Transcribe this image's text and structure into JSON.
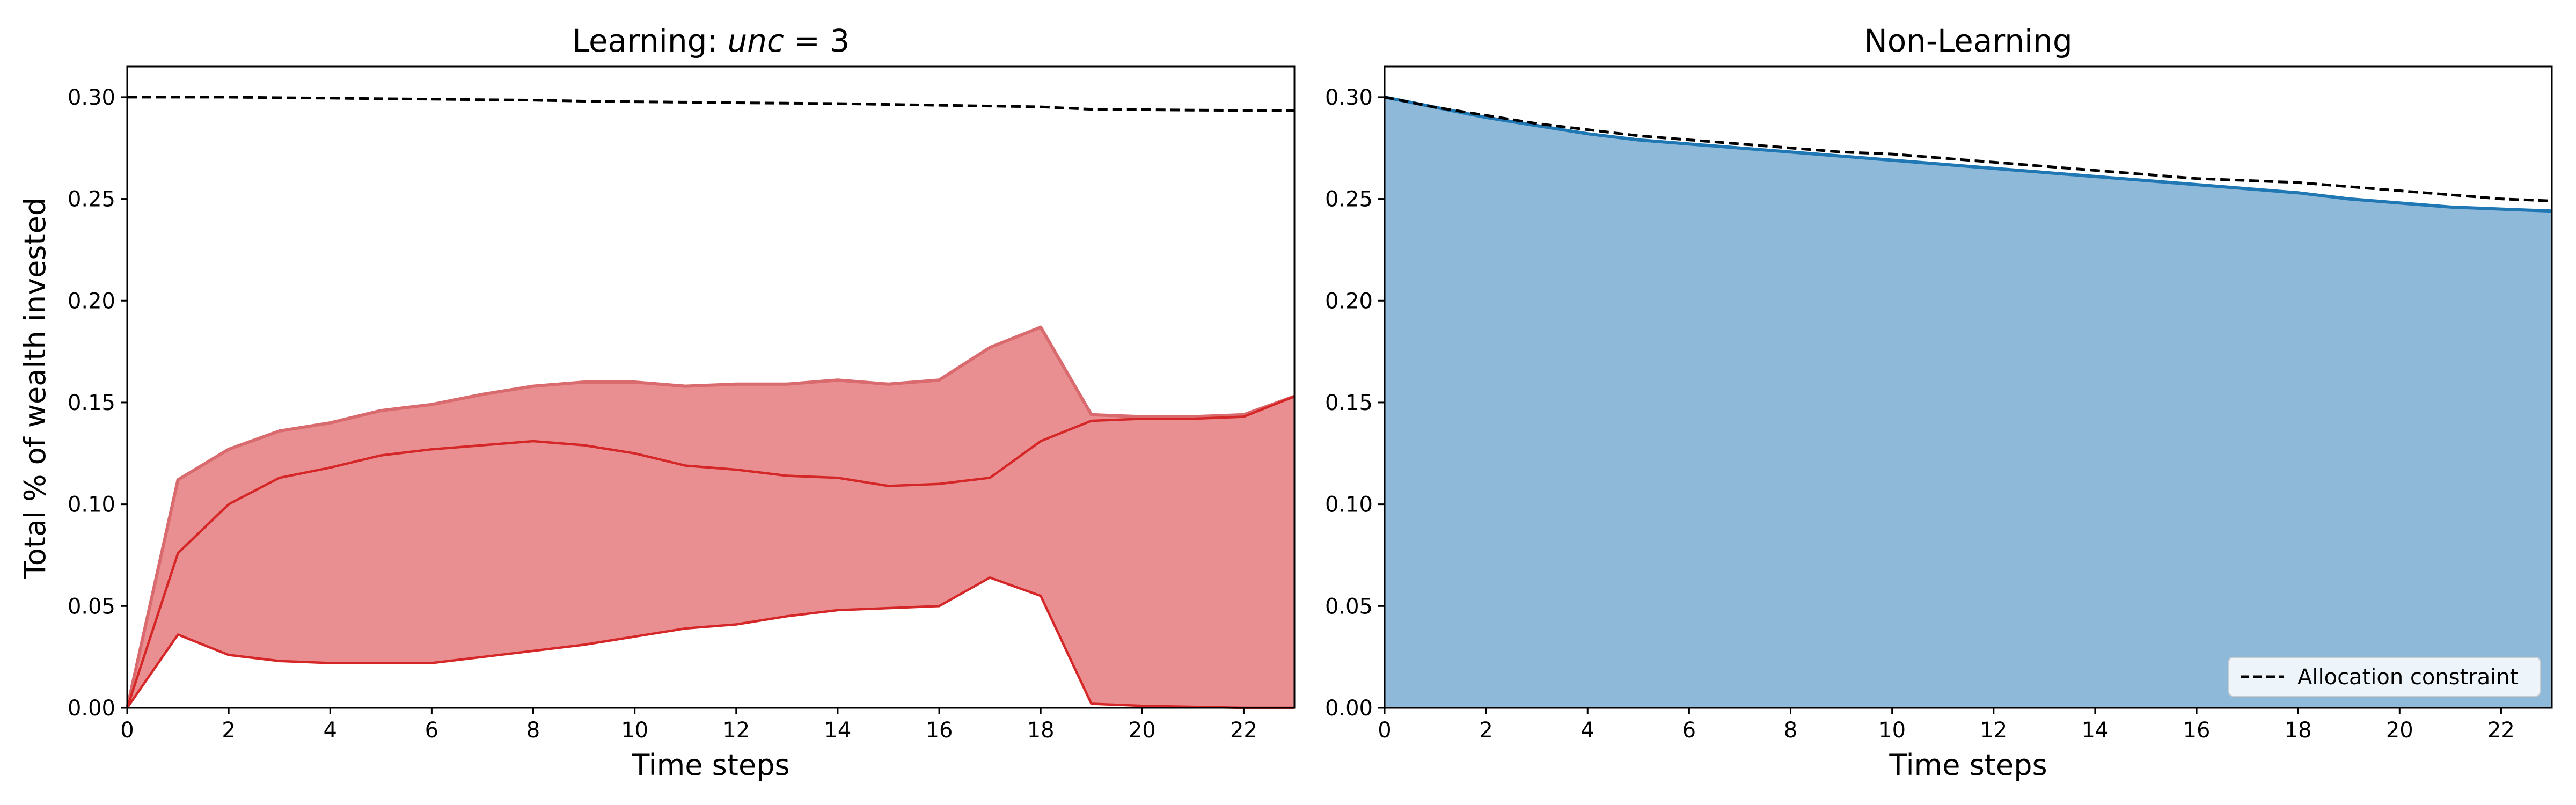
{
  "ylabel": "Total % of wealth invested",
  "chart_data": [
    {
      "type": "area",
      "title_prefix": "Learning: ",
      "title_italic": "unc",
      "title_suffix": " = 3",
      "xlabel": "Time steps",
      "xlim": [
        0,
        23
      ],
      "ylim": [
        0,
        0.315
      ],
      "xticks": [
        "0",
        "2",
        "4",
        "6",
        "8",
        "10",
        "12",
        "14",
        "16",
        "18",
        "20",
        "22"
      ],
      "yticks": [
        "0.00",
        "0.05",
        "0.10",
        "0.15",
        "0.20",
        "0.25",
        "0.30"
      ],
      "grid": false,
      "colors": {
        "band_fill": "#e98f91",
        "band_edge": "#d96b6e",
        "line": "#d62728",
        "constraint": "#000000"
      },
      "x": [
        0,
        1,
        2,
        3,
        4,
        5,
        6,
        7,
        8,
        9,
        10,
        11,
        12,
        13,
        14,
        15,
        16,
        17,
        18,
        19,
        20,
        21,
        22,
        23
      ],
      "upper": [
        0,
        0.112,
        0.127,
        0.136,
        0.14,
        0.146,
        0.149,
        0.154,
        0.158,
        0.16,
        0.16,
        0.158,
        0.159,
        0.159,
        0.161,
        0.159,
        0.161,
        0.177,
        0.187,
        0.144,
        0.143,
        0.143,
        0.144,
        0.153
      ],
      "median": [
        0,
        0.076,
        0.1,
        0.113,
        0.118,
        0.124,
        0.127,
        0.129,
        0.131,
        0.129,
        0.125,
        0.119,
        0.117,
        0.114,
        0.113,
        0.109,
        0.11,
        0.113,
        0.131,
        0.141,
        0.142,
        0.142,
        0.143,
        0.153
      ],
      "lower": [
        0,
        0.036,
        0.026,
        0.023,
        0.022,
        0.022,
        0.022,
        0.025,
        0.028,
        0.031,
        0.035,
        0.039,
        0.041,
        0.045,
        0.048,
        0.049,
        0.05,
        0.064,
        0.055,
        0.002,
        0.001,
        0.0005,
        0,
        0
      ],
      "constraint": [
        0.3,
        0.3,
        0.3,
        0.2997,
        0.2995,
        0.2992,
        0.299,
        0.2987,
        0.2985,
        0.298,
        0.2977,
        0.2975,
        0.2972,
        0.297,
        0.2968,
        0.2964,
        0.296,
        0.2956,
        0.2952,
        0.294,
        0.2938,
        0.2936,
        0.2935,
        0.2935
      ]
    },
    {
      "type": "area",
      "title_prefix": "Non-Learning",
      "title_italic": "",
      "title_suffix": "",
      "xlabel": "Time steps",
      "xlim": [
        0,
        23
      ],
      "ylim": [
        0,
        0.315
      ],
      "xticks": [
        "0",
        "2",
        "4",
        "6",
        "8",
        "10",
        "12",
        "14",
        "16",
        "18",
        "20",
        "22"
      ],
      "yticks": [
        "0.00",
        "0.05",
        "0.10",
        "0.15",
        "0.20",
        "0.25",
        "0.30"
      ],
      "grid": false,
      "legend_position": "lower-right",
      "legend_label": "Allocation constraint",
      "colors": {
        "fill": "#8fb9d9",
        "line": "#1f77b4",
        "constraint": "#000000",
        "legend_frame": "#cccccc"
      },
      "x": [
        0,
        1,
        2,
        3,
        4,
        5,
        6,
        7,
        8,
        9,
        10,
        11,
        12,
        13,
        14,
        15,
        16,
        17,
        18,
        19,
        20,
        21,
        22,
        23
      ],
      "values": [
        0.3,
        0.295,
        0.29,
        0.286,
        0.282,
        0.279,
        0.277,
        0.275,
        0.273,
        0.271,
        0.269,
        0.267,
        0.265,
        0.263,
        0.261,
        0.259,
        0.257,
        0.255,
        0.253,
        0.25,
        0.248,
        0.246,
        0.245,
        0.244
      ],
      "constraint": [
        0.3,
        0.295,
        0.291,
        0.287,
        0.284,
        0.281,
        0.279,
        0.277,
        0.275,
        0.273,
        0.272,
        0.27,
        0.268,
        0.266,
        0.264,
        0.262,
        0.26,
        0.259,
        0.258,
        0.256,
        0.254,
        0.252,
        0.25,
        0.249
      ]
    }
  ]
}
